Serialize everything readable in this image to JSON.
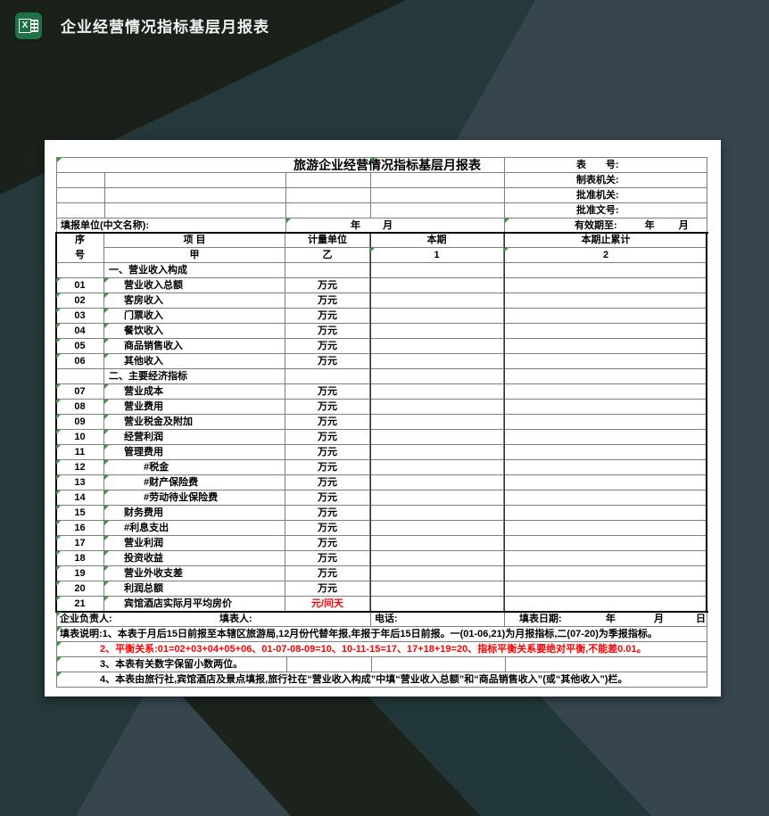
{
  "topbar": {
    "title": "企业经营情况指标基层月报表",
    "app_icon": "excel-icon"
  },
  "form": {
    "title": "旅游企业经营情况指标基层月报表",
    "meta": {
      "sheet_no": "表　　号:",
      "maker": "制表机关:",
      "approver": "批准机关:",
      "doc_no": "批准文号:",
      "valid_until": "有效期至:",
      "year": "年",
      "month": "月"
    },
    "report_unit_label": "填报单位(中文名称):",
    "period": {
      "year": "年",
      "month": "月"
    },
    "table": {
      "headers": {
        "seq_top": "序",
        "seq_bottom": "号",
        "item": "项  目",
        "unit": "计量单位",
        "current": "本期",
        "cumulative": "本期止累计",
        "sub_item": "甲",
        "sub_unit": "乙",
        "sub_current": "1",
        "sub_cumulative": "2"
      },
      "rows": [
        {
          "type": "section",
          "label": "一、营业收入构成"
        },
        {
          "type": "item",
          "no": "01",
          "label": "营业收入总额",
          "unit": "万元",
          "indent": 1
        },
        {
          "type": "item",
          "no": "02",
          "label": "客房收入",
          "unit": "万元",
          "indent": 1
        },
        {
          "type": "item",
          "no": "03",
          "label": "门票收入",
          "unit": "万元",
          "indent": 1
        },
        {
          "type": "item",
          "no": "04",
          "label": "餐饮收入",
          "unit": "万元",
          "indent": 1
        },
        {
          "type": "item",
          "no": "05",
          "label": "商品销售收入",
          "unit": "万元",
          "indent": 1
        },
        {
          "type": "item",
          "no": "06",
          "label": "其他收入",
          "unit": "万元",
          "indent": 1
        },
        {
          "type": "section",
          "label": "二、主要经济指标"
        },
        {
          "type": "item",
          "no": "07",
          "label": "营业成本",
          "unit": "万元",
          "indent": 1
        },
        {
          "type": "item",
          "no": "08",
          "label": "营业费用",
          "unit": "万元",
          "indent": 1
        },
        {
          "type": "item",
          "no": "09",
          "label": "营业税金及附加",
          "unit": "万元",
          "indent": 1
        },
        {
          "type": "item",
          "no": "10",
          "label": "经营利润",
          "unit": "万元",
          "indent": 1
        },
        {
          "type": "item",
          "no": "11",
          "label": "管理费用",
          "unit": "万元",
          "indent": 1
        },
        {
          "type": "item",
          "no": "12",
          "label": "#税金",
          "unit": "万元",
          "indent": 2
        },
        {
          "type": "item",
          "no": "13",
          "label": "#财产保险费",
          "unit": "万元",
          "indent": 2
        },
        {
          "type": "item",
          "no": "14",
          "label": "#劳动待业保险费",
          "unit": "万元",
          "indent": 2
        },
        {
          "type": "item",
          "no": "15",
          "label": "财务费用",
          "unit": "万元",
          "indent": 1
        },
        {
          "type": "item",
          "no": "16",
          "label": "#利息支出",
          "unit": "万元",
          "indent": 1
        },
        {
          "type": "item",
          "no": "17",
          "label": "营业利润",
          "unit": "万元",
          "indent": 1
        },
        {
          "type": "item",
          "no": "18",
          "label": "投资收益",
          "unit": "万元",
          "indent": 1
        },
        {
          "type": "item",
          "no": "19",
          "label": "营业外收支差",
          "unit": "万元",
          "indent": 1
        },
        {
          "type": "item",
          "no": "20",
          "label": "利润总额",
          "unit": "万元",
          "indent": 1
        },
        {
          "type": "item",
          "no": "21",
          "label": "宾馆酒店实际月平均房价",
          "unit": "元/间天",
          "unit_red": true,
          "indent": 1
        }
      ]
    },
    "footer": {
      "manager": "企业负责人:",
      "preparer": "填表人:",
      "phone": "电话:",
      "date_label": "填表日期:",
      "year": "年",
      "month": "月",
      "day": "日"
    },
    "notes": [
      {
        "text": "填表说明:1、本表于月后15日前报至本辖区旅游局,12月份代替年报,年报于年后15日前报。一(01-06,21)为月报指标,二(07-20)为季报指标。",
        "red": false
      },
      {
        "text": "2、平衡关系:01=02+03+04+05+06、01-07-08-09=10、10-11-15=17、17+18+19=20、指标平衡关系要绝对平衡,不能差0.01。",
        "red": true
      },
      {
        "text": "3、本表有关数字保留小数两位。",
        "red": false
      },
      {
        "text": "4、本表由旅行社,宾馆酒店及景点填报,旅行社在“营业收入构成”中填“营业收入总额”和“商品销售收入”(或“其他收入”)栏。",
        "red": false
      }
    ],
    "colors": {
      "accent_green": "#3a9a3a",
      "red": "#ff0000",
      "sheet_bg": "#ffffff"
    }
  }
}
